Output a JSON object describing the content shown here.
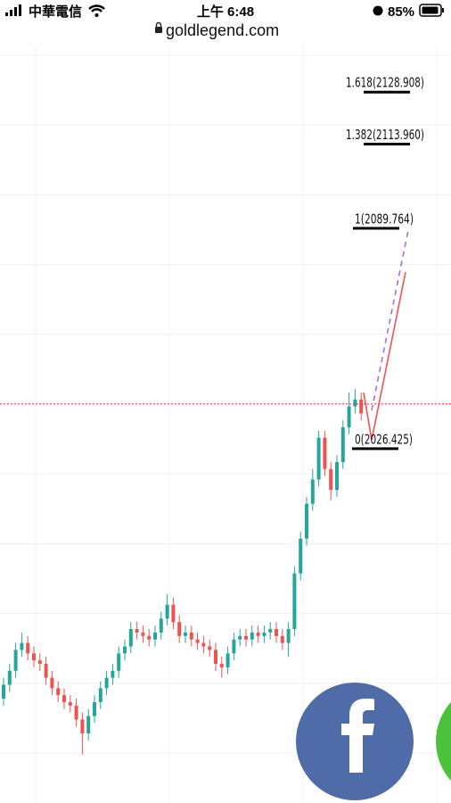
{
  "status_bar": {
    "carrier": "中華電信",
    "time": "上午 6:48",
    "battery": "85%"
  },
  "address_bar": {
    "url": "goldlegend.com"
  },
  "chart_data": {
    "type": "candlestick",
    "ylim": [
      1922,
      2140
    ],
    "open": [
      1952,
      1956,
      1960,
      1966,
      1968,
      1965,
      1963,
      1962,
      1958,
      1955,
      1953,
      1951,
      1950,
      1946,
      1942,
      1947,
      1951,
      1955,
      1958,
      1960,
      1965,
      1967,
      1972,
      1971,
      1970,
      1969,
      1971,
      1975,
      1979,
      1974,
      1970,
      1971,
      1969,
      1968,
      1967,
      1966,
      1962,
      1961,
      1965,
      1969,
      1970,
      1969,
      1971,
      1970,
      1971,
      1972,
      1970,
      1968,
      1972,
      1988,
      1998,
      2008,
      2015,
      2027,
      2018,
      2012,
      2020,
      2030,
      2036,
      2038
    ],
    "high": [
      1958,
      1962,
      1968,
      1971,
      1970,
      1967,
      1965,
      1964,
      1960,
      1957,
      1955,
      1953,
      1952,
      1948,
      1949,
      1953,
      1957,
      1960,
      1962,
      1967,
      1969,
      1974,
      1974,
      1973,
      1972,
      1973,
      1977,
      1982,
      1981,
      1976,
      1973,
      1973,
      1971,
      1970,
      1969,
      1968,
      1964,
      1967,
      1971,
      1972,
      1972,
      1973,
      1973,
      1973,
      1974,
      1974,
      1972,
      1974,
      1990,
      2000,
      2010,
      2018,
      2029,
      2029,
      2020,
      2022,
      2032,
      2040,
      2041,
      2040
    ],
    "low": [
      1950,
      1954,
      1958,
      1964,
      1963,
      1961,
      1960,
      1956,
      1953,
      1951,
      1949,
      1948,
      1944,
      1936,
      1940,
      1945,
      1949,
      1953,
      1956,
      1958,
      1963,
      1965,
      1969,
      1968,
      1967,
      1967,
      1969,
      1973,
      1972,
      1968,
      1968,
      1967,
      1966,
      1965,
      1964,
      1960,
      1958,
      1959,
      1963,
      1967,
      1967,
      1967,
      1968,
      1968,
      1969,
      1968,
      1966,
      1964,
      1970,
      1986,
      1996,
      2006,
      2013,
      2016,
      2009,
      2010,
      2018,
      2028,
      2034,
      2032
    ],
    "close": [
      1956,
      1960,
      1966,
      1968,
      1965,
      1963,
      1962,
      1958,
      1955,
      1953,
      1951,
      1950,
      1946,
      1942,
      1947,
      1951,
      1955,
      1958,
      1960,
      1965,
      1967,
      1972,
      1971,
      1970,
      1969,
      1971,
      1975,
      1979,
      1974,
      1970,
      1971,
      1969,
      1968,
      1967,
      1966,
      1962,
      1961,
      1965,
      1969,
      1970,
      1969,
      1971,
      1970,
      1971,
      1972,
      1970,
      1968,
      1972,
      1988,
      1998,
      2008,
      2015,
      2027,
      2018,
      2012,
      2020,
      2030,
      2036,
      2038,
      2034
    ],
    "up_color": "#26a69a",
    "down_color": "#ef5350",
    "current_price": 2036.7,
    "fib_levels": [
      {
        "label": "1.618(2128.908)",
        "value": 2128.908
      },
      {
        "label": "1.382(2113.960)",
        "value": 2113.96
      },
      {
        "label": "1(2089.764)",
        "value": 2089.764
      },
      {
        "label": "0(2026.425)",
        "value": 2026.425
      }
    ]
  }
}
